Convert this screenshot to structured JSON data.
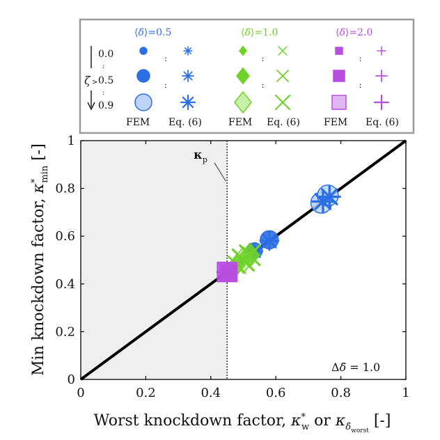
{
  "chart_data": {
    "type": "scatter",
    "xlabel": "Worst knockdown factor, κ*w or κδ̄worst [-]",
    "xlabel_main": "Worst knockdown factor, ",
    "xlabel_kw": "κ",
    "xlabel_kw_sup": "*",
    "xlabel_kw_sub": "w",
    "xlabel_or": " or ",
    "xlabel_kd": "κ",
    "xlabel_kd_sub": "δ̄",
    "xlabel_kd_subsub": "worst",
    "xlabel_unit": " [-]",
    "ylabel": "Min knockdown factor, κ*min [-]",
    "ylabel_main": "Min knockdown factor, ",
    "ylabel_k": "κ",
    "ylabel_sup": "*",
    "ylabel_sub": "min",
    "ylabel_unit": " [-]",
    "xlim": [
      0,
      1
    ],
    "ylim": [
      0,
      1
    ],
    "xticks": [
      0,
      0.2,
      0.4,
      0.6,
      0.8,
      1
    ],
    "yticks": [
      0,
      0.2,
      0.4,
      0.6,
      0.8,
      1
    ],
    "xtick_labels": [
      "0",
      "0.2",
      "0.4",
      "0.6",
      "0.8",
      "1"
    ],
    "ytick_labels": [
      "0",
      "0.2",
      "0.4",
      "0.6",
      "0.8",
      "1"
    ],
    "shaded_region_x": [
      0,
      0.45
    ],
    "kappa_p": {
      "x": 0.45,
      "label": "κ",
      "sub": "p"
    },
    "reference_line": {
      "x": [
        0,
        1
      ],
      "y": [
        0,
        1
      ]
    },
    "annotation": "Δδ̄ = 1.0",
    "annotation_delta": "Δ",
    "annotation_rest": " = 1.0",
    "colors": {
      "blue": "#2b6fe6",
      "blue_fill": "#bcd4f7",
      "green": "#6fd22a",
      "green_fill": "#c9f0a8",
      "purple": "#b84ee0",
      "purple_fill": "#e2b6f2",
      "shade": "#efefef"
    },
    "series": [
      {
        "name": "⟨δ̄⟩=0.5 FEM",
        "color": "blue",
        "marker": "circle",
        "points": [
          {
            "x": 0.74,
            "y": 0.74,
            "z": 0.9
          },
          {
            "x": 0.76,
            "y": 0.77,
            "z": 0.9
          },
          {
            "x": 0.58,
            "y": 0.585,
            "z": 0.7
          },
          {
            "x": 0.535,
            "y": 0.54,
            "z": 0.5
          },
          {
            "x": 0.51,
            "y": 0.515,
            "z": 0.3
          }
        ]
      },
      {
        "name": "⟨δ̄⟩=0.5 Eq. (6)",
        "color": "blue",
        "marker": "asterisk",
        "points": [
          {
            "x": 0.745,
            "y": 0.745,
            "z": 0.9
          },
          {
            "x": 0.765,
            "y": 0.765,
            "z": 0.9
          },
          {
            "x": 0.58,
            "y": 0.58,
            "z": 0.7
          },
          {
            "x": 0.535,
            "y": 0.535,
            "z": 0.5
          }
        ]
      },
      {
        "name": "⟨δ̄⟩=1.0 FEM",
        "color": "green",
        "marker": "diamond",
        "points": [
          {
            "x": 0.5,
            "y": 0.5,
            "z": 0.9
          },
          {
            "x": 0.52,
            "y": 0.52,
            "z": 0.8
          },
          {
            "x": 0.48,
            "y": 0.48,
            "z": 0.6
          },
          {
            "x": 0.465,
            "y": 0.465,
            "z": 0.3
          }
        ]
      },
      {
        "name": "⟨δ̄⟩=1.0 Eq. (6)",
        "color": "green",
        "marker": "x",
        "points": [
          {
            "x": 0.5,
            "y": 0.5,
            "z": 0.9
          },
          {
            "x": 0.52,
            "y": 0.52,
            "z": 0.8
          },
          {
            "x": 0.48,
            "y": 0.48,
            "z": 0.6
          }
        ]
      },
      {
        "name": "⟨δ̄⟩=2.0 FEM",
        "color": "purple",
        "marker": "square",
        "points": [
          {
            "x": 0.45,
            "y": 0.45,
            "z": 0.8
          },
          {
            "x": 0.455,
            "y": 0.445,
            "z": 0.6
          }
        ]
      },
      {
        "name": "⟨δ̄⟩=2.0 Eq. (6)",
        "color": "purple",
        "marker": "plus",
        "points": [
          {
            "x": 0.45,
            "y": 0.45,
            "z": 0.8
          }
        ]
      }
    ],
    "legend": {
      "placement": "top",
      "groups": [
        {
          "label_pre": "⟨",
          "label_var": "δ̄",
          "label_post": "⟩=0.5",
          "color": "blue",
          "fem_marker": "circle",
          "eq_marker": "asterisk"
        },
        {
          "label_pre": "⟨",
          "label_var": "δ̄",
          "label_post": "⟩=1.0",
          "color": "green",
          "fem_marker": "diamond",
          "eq_marker": "x"
        },
        {
          "label_pre": "⟨",
          "label_var": "δ̄",
          "label_post": "⟩=2.0",
          "color": "purple",
          "fem_marker": "square",
          "eq_marker": "plus"
        }
      ],
      "fem_label": "FEM",
      "eq_label": "Eq. (6)",
      "zeta_symbol": "ζ",
      "zeta_values": [
        "0.0",
        "0.5",
        "0.9"
      ],
      "colon": ":"
    }
  }
}
